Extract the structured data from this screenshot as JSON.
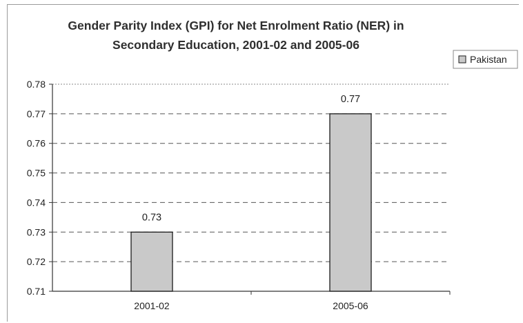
{
  "chart_data": {
    "type": "bar",
    "title": "Gender Parity Index (GPI) for Net Enrolment Ratio (NER) in Secondary Education, 2001-02 and 2005-06",
    "title_lines": [
      "Gender Parity Index (GPI) for Net Enrolment Ratio (NER) in",
      "Secondary Education, 2001-02 and 2005-06"
    ],
    "categories": [
      "2001-02",
      "2005-06"
    ],
    "series": [
      {
        "name": "Pakistan",
        "values": [
          0.73,
          0.77
        ],
        "labels": [
          "0.73",
          "0.77"
        ]
      }
    ],
    "ylim": [
      0.71,
      0.78
    ],
    "yticks": [
      "0.78",
      "0.77",
      "0.76",
      "0.75",
      "0.74",
      "0.73",
      "0.72",
      "0.71"
    ],
    "ytick_values": [
      0.78,
      0.77,
      0.76,
      0.75,
      0.74,
      0.73,
      0.72,
      0.71
    ],
    "grid": true,
    "legend_position": "top-right",
    "colors": {
      "bar_fill": "#c9c9c9",
      "bar_stroke": "#1a1a1a",
      "grid": "#555555",
      "axis": "#333333"
    }
  }
}
